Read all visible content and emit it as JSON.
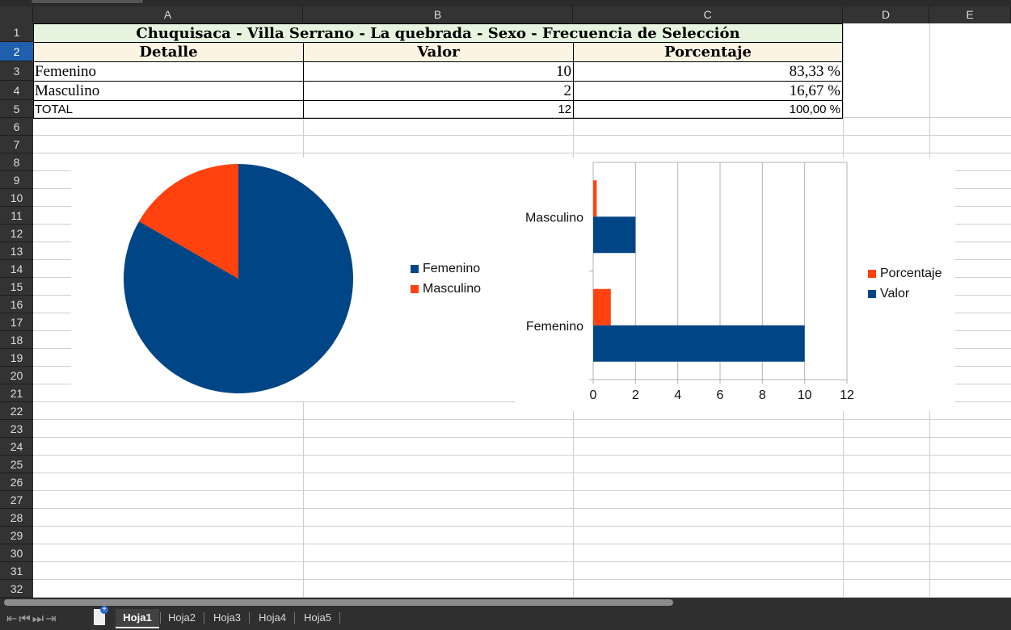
{
  "columns": [
    "A",
    "B",
    "C",
    "D",
    "E"
  ],
  "rows": [
    "1",
    "2",
    "3",
    "4",
    "5",
    "6",
    "7",
    "8",
    "9",
    "10",
    "11",
    "12",
    "13",
    "14",
    "15",
    "16",
    "17",
    "18",
    "19",
    "20",
    "21",
    "22",
    "23",
    "24",
    "25",
    "26",
    "27",
    "28",
    "29",
    "30",
    "31",
    "32"
  ],
  "table": {
    "title": "Chuquisaca - Villa Serrano - La quebrada - Sexo - Frecuencia de Selección",
    "headers": {
      "detalle": "Detalle",
      "valor": "Valor",
      "porcentaje": "Porcentaje"
    },
    "body": [
      {
        "detalle": "Femenino",
        "valor": "10",
        "porcentaje": "83,33 %"
      },
      {
        "detalle": "Masculino",
        "valor": "2",
        "porcentaje": "16,67 %"
      }
    ],
    "total": {
      "detalle": "TOTAL",
      "valor": "12",
      "porcentaje": "100,00 %"
    }
  },
  "chart_data": [
    {
      "type": "pie",
      "labels": [
        "Femenino",
        "Masculino"
      ],
      "values": [
        10,
        2
      ],
      "colors": [
        "#004586",
        "#ff420e"
      ],
      "legend": "right"
    },
    {
      "type": "bar",
      "orientation": "horizontal",
      "categories": [
        "Femenino",
        "Masculino"
      ],
      "series": [
        {
          "name": "Valor",
          "values": [
            10,
            2
          ],
          "color": "#004586"
        },
        {
          "name": "Porcentaje",
          "values": [
            0.8333,
            0.1667
          ],
          "color": "#ff420e"
        }
      ],
      "xlim": [
        0,
        12
      ],
      "xticks": [
        "0",
        "2",
        "4",
        "6",
        "8",
        "10",
        "12"
      ],
      "grid": true,
      "legend": "right"
    }
  ],
  "sheets": [
    "Hoja1",
    "Hoja2",
    "Hoja3",
    "Hoja4",
    "Hoja5"
  ],
  "active_sheet": "Hoja1"
}
